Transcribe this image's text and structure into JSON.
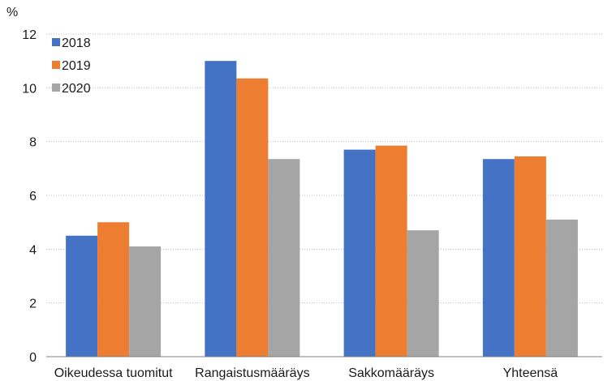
{
  "chart_data": {
    "type": "bar",
    "title": "",
    "ylabel": "%",
    "xlabel": "",
    "ylim": [
      0,
      12
    ],
    "yticks": [
      0,
      2,
      4,
      6,
      8,
      10,
      12
    ],
    "categories": [
      "Oikeudessa tuomitut",
      "Rangaistusmääräys",
      "Sakkomääräys",
      "Yhteensä"
    ],
    "series": [
      {
        "name": "2018",
        "color": "#4472c4",
        "values": [
          4.5,
          11.0,
          7.7,
          7.35
        ]
      },
      {
        "name": "2019",
        "color": "#ed7d31",
        "values": [
          5.0,
          10.35,
          7.85,
          7.45
        ]
      },
      {
        "name": "2020",
        "color": "#a5a5a5",
        "values": [
          4.1,
          7.35,
          4.7,
          5.1
        ]
      }
    ],
    "grid": true,
    "legend_position": "top-left"
  }
}
